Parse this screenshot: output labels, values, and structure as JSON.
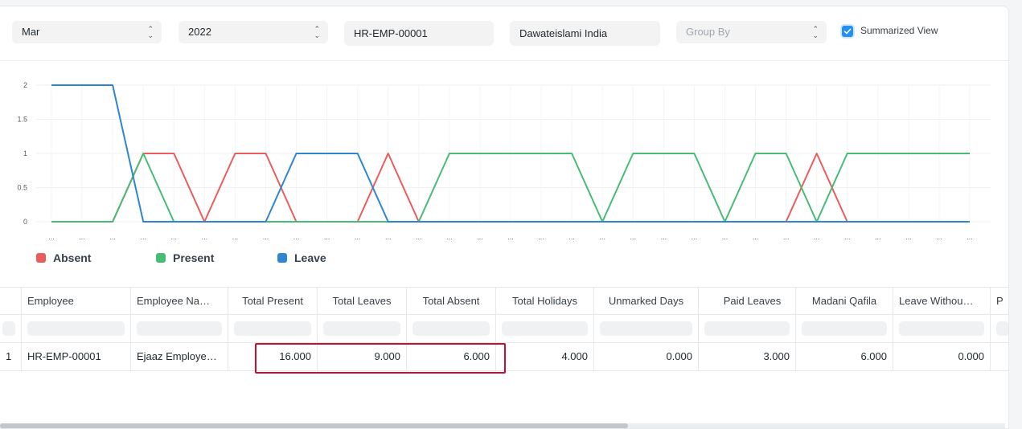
{
  "filters": {
    "month": "Mar",
    "year": "2022",
    "employee": "HR-EMP-00001",
    "company": "Dawateislami India",
    "group_by_placeholder": "Group By",
    "summarized_view_label": "Summarized View",
    "summarized_view_checked": true
  },
  "chart_data": {
    "type": "line",
    "ylim": [
      0,
      2
    ],
    "yticks": [
      "2",
      "1.5",
      "1",
      "0.5",
      "0"
    ],
    "x_tick_label": "...",
    "x_count": 31,
    "series": [
      {
        "name": "Absent",
        "color": "#eb5c5c",
        "values": [
          0,
          0,
          0,
          1,
          1,
          0,
          1,
          1,
          0,
          0,
          0,
          1,
          0,
          0,
          0,
          0,
          0,
          0,
          0,
          0,
          0,
          0,
          0,
          0,
          0,
          1,
          0,
          0,
          0,
          0,
          0
        ]
      },
      {
        "name": "Present",
        "color": "#48bb74",
        "values": [
          0,
          0,
          0,
          1,
          0,
          0,
          0,
          0,
          0,
          0,
          0,
          0,
          0,
          1,
          1,
          1,
          1,
          1,
          0,
          1,
          1,
          1,
          0,
          1,
          1,
          0,
          1,
          1,
          1,
          1,
          1
        ]
      },
      {
        "name": "Leave",
        "color": "#2e86d1",
        "values": [
          2,
          2,
          2,
          0,
          0,
          0,
          0,
          0,
          1,
          1,
          1,
          0,
          0,
          0,
          0,
          0,
          0,
          0,
          0,
          0,
          0,
          0,
          0,
          0,
          0,
          0,
          0,
          0,
          0,
          0,
          0
        ]
      }
    ]
  },
  "table": {
    "headers": [
      "Employee",
      "Employee Na…",
      "Total Present",
      "Total Leaves",
      "Total Absent",
      "Total Holidays",
      "Unmarked Days",
      "Paid Leaves",
      "Madani Qafila",
      "Leave Withou…",
      "P"
    ],
    "rows": [
      {
        "index": "1",
        "cells": [
          "HR-EMP-00001",
          "Ejaaz Employe…",
          "16.000",
          "9.000",
          "6.000",
          "4.000",
          "0.000",
          "3.000",
          "6.000",
          "0.000",
          ""
        ]
      }
    ]
  }
}
